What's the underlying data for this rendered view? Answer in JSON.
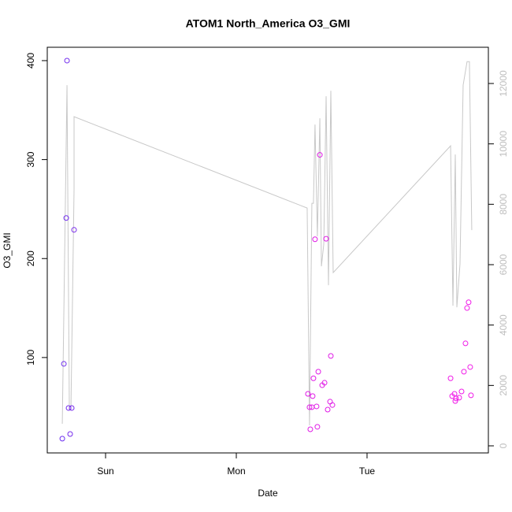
{
  "chart_data": {
    "type": "scatter",
    "title": "ATOM1 North_America O3_GMI",
    "xlabel": "Date",
    "ylabel": "O3_GMI",
    "xlim": [
      -0.446,
      2.928
    ],
    "xticks": [
      {
        "value": 0,
        "label": "Sun"
      },
      {
        "value": 1,
        "label": "Mon"
      },
      {
        "value": 2,
        "label": "Tue"
      }
    ],
    "ylim": [
      3.6,
      413.5
    ],
    "yticks": [
      100,
      200,
      300,
      400
    ],
    "y2lim": [
      -235,
      13200
    ],
    "y2ticks": [
      0,
      2000,
      4000,
      6000,
      8000,
      10000,
      12000
    ],
    "y2color": "#bebebe",
    "series": [
      {
        "type": "line",
        "axis": "y2",
        "color": "#c8c8c8",
        "x": [
          -0.331,
          -0.295,
          -0.277,
          -0.265,
          -0.241,
          -0.241,
          1.542,
          1.56,
          1.578,
          1.59,
          1.602,
          1.62,
          1.639,
          1.651,
          1.669,
          1.687,
          1.705,
          1.723,
          1.741,
          2.639,
          2.657,
          2.675,
          2.687,
          2.711,
          2.735,
          2.765,
          2.783,
          2.801
        ],
        "values": [
          730,
          11943,
          1200,
          1200,
          8500,
          10900,
          7875,
          678,
          8031,
          8031,
          10639,
          6936,
          10848,
          5945,
          6675,
          11578,
          5319,
          11760,
          5737,
          9935,
          4641,
          9648,
          4589,
          6023,
          11943,
          12725,
          12725,
          7145
        ]
      },
      {
        "type": "scatter",
        "x": [
          -0.331,
          -0.319,
          -0.295,
          -0.301,
          -0.283,
          -0.271,
          -0.259,
          -0.241,
          1.548,
          1.56,
          1.566,
          1.578,
          1.584,
          1.59,
          1.602,
          1.614,
          1.62,
          1.627,
          1.639,
          1.657,
          1.675,
          1.687,
          1.699,
          1.717,
          1.723,
          1.735,
          2.639,
          2.651,
          2.669,
          2.675,
          2.681,
          2.705,
          2.723,
          2.741,
          2.753,
          2.765,
          2.777,
          2.789,
          2.795
        ],
        "values": [
          18,
          93.6,
          400,
          241,
          49,
          22.7,
          49,
          229,
          63.3,
          49.8,
          27.5,
          49.8,
          61,
          79,
          219.5,
          50.6,
          30,
          85.7,
          304.8,
          72,
          74.5,
          220,
          47.4,
          55.4,
          101.6,
          52,
          79,
          61,
          63.3,
          56,
          58.6,
          59.4,
          65.7,
          85.7,
          114.3,
          150,
          155.8,
          90.4,
          61.8
        ],
        "colors": [
          "#6a2cf0",
          "#6e2cef",
          "#722cee",
          "#702cee",
          "#742ced",
          "#762cec",
          "#782cec",
          "#7a2ceb",
          "#e01ae6",
          "#e01ae6",
          "#e01ae6",
          "#e01ae6",
          "#e01ae6",
          "#e01ae6",
          "#e01ae6",
          "#e01ae6",
          "#e01ae6",
          "#e01ae6",
          "#e01ae6",
          "#e01ae6",
          "#e01ae6",
          "#e01ae6",
          "#e01ae6",
          "#e01ae6",
          "#e01ae6",
          "#e01ae6",
          "#f01ae8",
          "#f01ae8",
          "#f01ae8",
          "#f01ae8",
          "#f01ae8",
          "#f01ae8",
          "#f01ae8",
          "#f01ae8",
          "#f01ae8",
          "#f01ae8",
          "#f01ae8",
          "#f01ae8",
          "#f01ae8"
        ]
      }
    ]
  }
}
